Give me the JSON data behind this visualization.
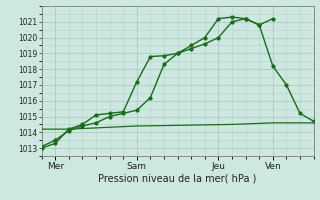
{
  "bg_color": "#cce8e0",
  "grid_color": "#b0c8c0",
  "line_color": "#1a6b1a",
  "xlabel": "Pression niveau de la mer( hPa )",
  "ylim": [
    1012.5,
    1021.8
  ],
  "yticks": [
    1013,
    1014,
    1015,
    1016,
    1017,
    1018,
    1019,
    1020,
    1021
  ],
  "xlim": [
    0,
    20
  ],
  "day_labels": [
    "Mer",
    "Sam",
    "Jeu",
    "Ven"
  ],
  "day_positions": [
    1,
    7,
    13,
    17
  ],
  "line1_x": [
    0,
    1,
    2,
    3,
    4,
    5,
    6,
    7,
    8,
    9,
    10,
    11,
    12,
    13,
    14,
    15,
    16,
    17
  ],
  "line1_y": [
    1013.0,
    1013.3,
    1014.2,
    1014.5,
    1015.1,
    1015.2,
    1015.3,
    1017.2,
    1018.8,
    1018.85,
    1019.0,
    1019.5,
    1020.0,
    1021.2,
    1021.3,
    1021.2,
    1020.8,
    1021.2
  ],
  "line2_x": [
    0,
    1,
    2,
    3,
    4,
    5,
    6,
    7,
    8,
    9,
    10,
    11,
    12,
    13,
    14,
    15,
    16,
    17,
    18,
    19,
    20
  ],
  "line2_y": [
    1013.1,
    1013.5,
    1014.1,
    1014.4,
    1014.6,
    1015.0,
    1015.2,
    1015.4,
    1016.2,
    1018.3,
    1019.0,
    1019.3,
    1019.6,
    1020.0,
    1021.0,
    1021.2,
    1020.8,
    1018.2,
    1017.0,
    1015.2,
    1014.7
  ],
  "line3_x": [
    0,
    2,
    7,
    14,
    17,
    20
  ],
  "line3_y": [
    1014.2,
    1014.2,
    1014.4,
    1014.5,
    1014.6,
    1014.6
  ]
}
